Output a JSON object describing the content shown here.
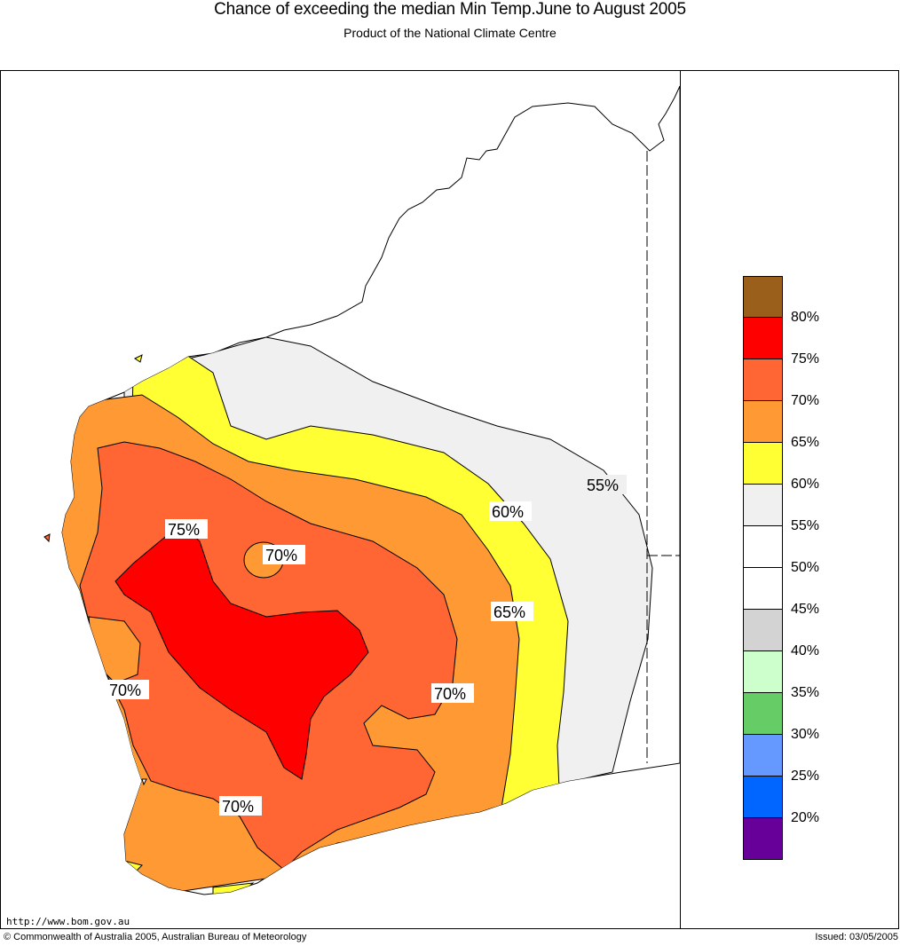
{
  "header": {
    "title": "Chance of exceeding the median Min Temp.June to August 2005",
    "subtitle": "Product of the National Climate Centre"
  },
  "contour_labels": [
    "75%",
    "70%",
    "70%",
    "70%",
    "70%",
    "65%",
    "60%",
    "55%"
  ],
  "legend": {
    "labels": [
      "80%",
      "75%",
      "70%",
      "65%",
      "60%",
      "55%",
      "50%",
      "45%",
      "40%",
      "35%",
      "30%",
      "25%",
      "20%"
    ],
    "colors": [
      "#9b5f1c",
      "#ff0000",
      "#ff6633",
      "#ff9933",
      "#ffff33",
      "#f0f0f0",
      "#ffffff",
      "#ffffff",
      "#d3d3d3",
      "#ccffcc",
      "#66cc66",
      "#6699ff",
      "#0066ff",
      "#660099"
    ]
  },
  "footer": {
    "url": "http://www.bom.gov.au",
    "copyright": "© Commonwealth of Australia 2005, Australian Bureau of Meteorology",
    "issued": "Issued: 03/05/2005"
  }
}
